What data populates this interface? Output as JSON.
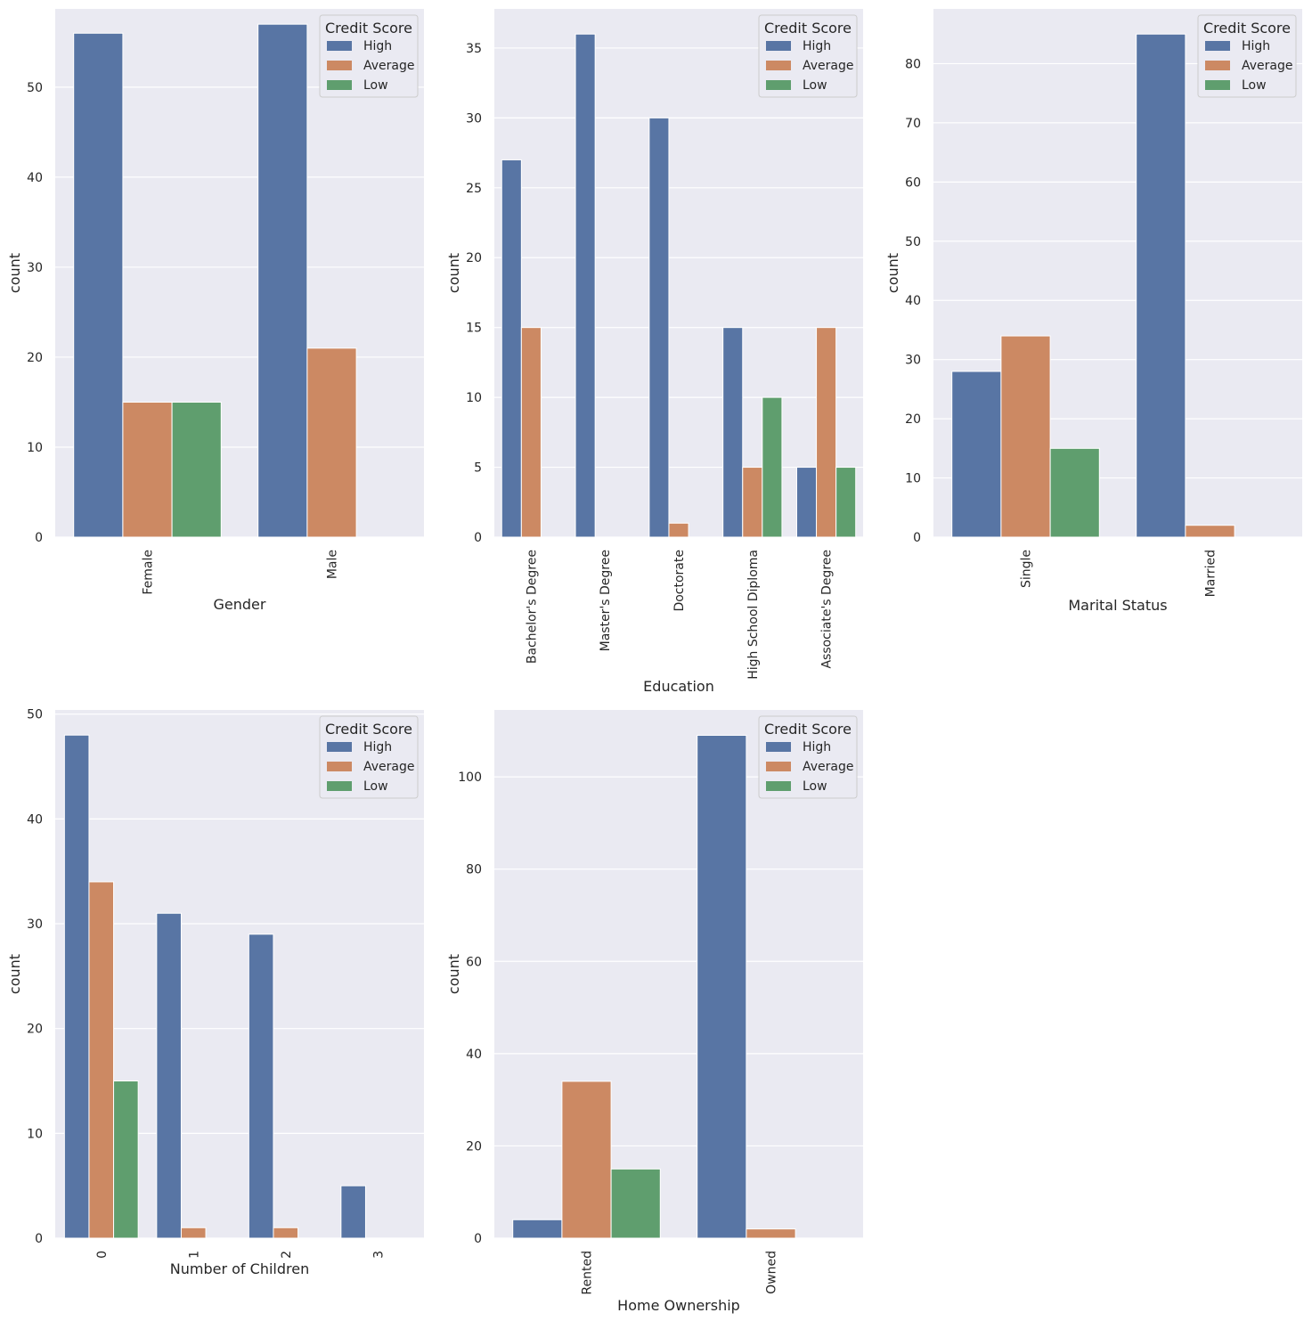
{
  "hue": {
    "title": "Credit Score",
    "levels": [
      "High",
      "Average",
      "Low"
    ],
    "colors": [
      "#5875a4",
      "#cc8963",
      "#5f9e6e"
    ]
  },
  "chart_data": [
    {
      "type": "bar",
      "xlabel": "Gender",
      "ylabel": "count",
      "ylim": [
        0,
        58.7
      ],
      "yticks": [
        0,
        10,
        20,
        30,
        40,
        50
      ],
      "categories": [
        "Female",
        "Male"
      ],
      "series": [
        {
          "name": "High",
          "values": [
            56,
            57
          ]
        },
        {
          "name": "Average",
          "values": [
            15,
            21
          ]
        },
        {
          "name": "Low",
          "values": [
            15,
            0
          ]
        }
      ],
      "legend": "top-right"
    },
    {
      "type": "bar",
      "xlabel": "Education",
      "ylabel": "count",
      "ylim": [
        0,
        37.8
      ],
      "yticks": [
        0,
        5,
        10,
        15,
        20,
        25,
        30,
        35
      ],
      "categories": [
        "Bachelor's Degree",
        "Master's Degree",
        "Doctorate",
        "High School Diploma",
        "Associate's Degree"
      ],
      "series": [
        {
          "name": "High",
          "values": [
            27,
            36,
            30,
            15,
            5
          ]
        },
        {
          "name": "Average",
          "values": [
            15,
            0,
            1,
            5,
            15
          ]
        },
        {
          "name": "Low",
          "values": [
            0,
            0,
            0,
            10,
            5
          ]
        }
      ],
      "legend": "top-right"
    },
    {
      "type": "bar",
      "xlabel": "Marital Status",
      "ylabel": "count",
      "ylim": [
        0,
        89.25
      ],
      "yticks": [
        0,
        10,
        20,
        30,
        40,
        50,
        60,
        70,
        80
      ],
      "categories": [
        "Single",
        "Married"
      ],
      "series": [
        {
          "name": "High",
          "values": [
            28,
            85
          ]
        },
        {
          "name": "Average",
          "values": [
            34,
            2
          ]
        },
        {
          "name": "Low",
          "values": [
            15,
            0
          ]
        }
      ],
      "legend": "top-right"
    },
    {
      "type": "bar",
      "xlabel": "Number of Children",
      "ylabel": "count",
      "ylim": [
        0,
        50.4
      ],
      "yticks": [
        0,
        10,
        20,
        30,
        40,
        50
      ],
      "categories": [
        "0",
        "1",
        "2",
        "3"
      ],
      "series": [
        {
          "name": "High",
          "values": [
            48,
            31,
            29,
            5
          ]
        },
        {
          "name": "Average",
          "values": [
            34,
            1,
            1,
            0
          ]
        },
        {
          "name": "Low",
          "values": [
            15,
            0,
            0,
            0
          ]
        }
      ],
      "legend": "top-right"
    },
    {
      "type": "bar",
      "xlabel": "Home Ownership",
      "ylabel": "count",
      "ylim": [
        0,
        114.5
      ],
      "yticks": [
        0,
        20,
        40,
        60,
        80,
        100
      ],
      "categories": [
        "Rented",
        "Owned"
      ],
      "series": [
        {
          "name": "High",
          "values": [
            4,
            109
          ]
        },
        {
          "name": "Average",
          "values": [
            34,
            2
          ]
        },
        {
          "name": "Low",
          "values": [
            15,
            0
          ]
        }
      ],
      "legend": "top-right"
    }
  ]
}
